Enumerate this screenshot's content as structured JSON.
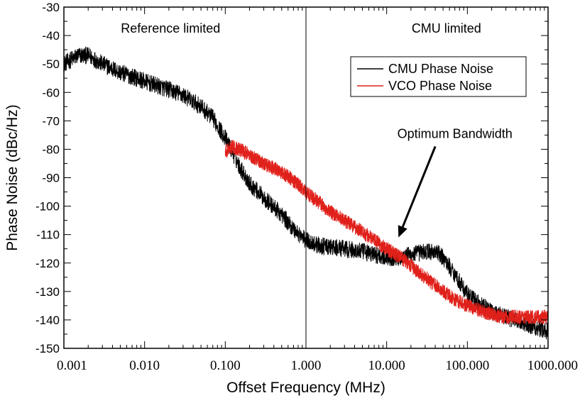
{
  "chart_data": {
    "type": "line",
    "xlabel": "Offset Frequency (MHz)",
    "ylabel": "Phase Noise (dBc/Hz)",
    "x_scale": "log",
    "xlim": [
      0.001,
      1000
    ],
    "ylim": [
      -150,
      -30
    ],
    "x_ticks": [
      0.001,
      0.01,
      0.1,
      1,
      10,
      100,
      1000
    ],
    "x_tick_labels": [
      "0.001",
      "0.010",
      "0.100",
      "1.000",
      "10.000",
      "100.000",
      "1000.000"
    ],
    "y_ticks": [
      -150,
      -140,
      -130,
      -120,
      -110,
      -100,
      -90,
      -80,
      -70,
      -60,
      -50,
      -40,
      -30
    ],
    "y_tick_labels": [
      "-150",
      "-140",
      "-130",
      "-120",
      "-110",
      "-100",
      "-90",
      "-80",
      "-70",
      "-60",
      "-50",
      "-40",
      "-30"
    ],
    "grid": false,
    "legend_position": "top-right",
    "vertical_line_x": 1,
    "region_labels": [
      {
        "text": "Reference limited",
        "x": 0.021,
        "y": -39
      },
      {
        "text": "CMU limited",
        "x": 55,
        "y": -39
      }
    ],
    "annotation": {
      "text": "Optimum Bandwidth",
      "text_x": 70,
      "text_y": -76,
      "arrow_from": [
        40,
        -79
      ],
      "arrow_to": [
        14,
        -111
      ]
    },
    "series": [
      {
        "name": "CMU Phase Noise",
        "color": "#000000",
        "x": [
          0.001,
          0.0015,
          0.002,
          0.003,
          0.005,
          0.008,
          0.012,
          0.02,
          0.03,
          0.05,
          0.07,
          0.1,
          0.15,
          0.2,
          0.3,
          0.5,
          0.7,
          1,
          1.5,
          2,
          3,
          5,
          7,
          10,
          15,
          20,
          30,
          40,
          50,
          70,
          100,
          150,
          200,
          300,
          500,
          1000
        ],
        "y": [
          -50,
          -47,
          -47,
          -50,
          -53,
          -55,
          -57,
          -59,
          -61,
          -65,
          -69,
          -76,
          -86,
          -92,
          -97,
          -103,
          -108,
          -112,
          -114,
          -114.5,
          -115,
          -116,
          -117,
          -118,
          -118,
          -117,
          -116,
          -116,
          -118,
          -124,
          -131,
          -135,
          -137,
          -139,
          -141,
          -144
        ],
        "noise_amplitude": 3
      },
      {
        "name": "VCO Phase Noise",
        "color": "#e0201a",
        "x": [
          0.1,
          0.12,
          0.15,
          0.2,
          0.3,
          0.5,
          0.7,
          1,
          1.5,
          2,
          3,
          5,
          7,
          10,
          15,
          20,
          30,
          50,
          70,
          100,
          150,
          200,
          300,
          500,
          1000
        ],
        "y": [
          -81,
          -79,
          -80,
          -82,
          -85,
          -88,
          -91,
          -95,
          -99,
          -102,
          -105,
          -109,
          -112,
          -115,
          -118,
          -121,
          -125,
          -130,
          -133,
          -135,
          -137,
          -138,
          -139,
          -139,
          -139
        ],
        "noise_amplitude": 2.5
      }
    ]
  }
}
